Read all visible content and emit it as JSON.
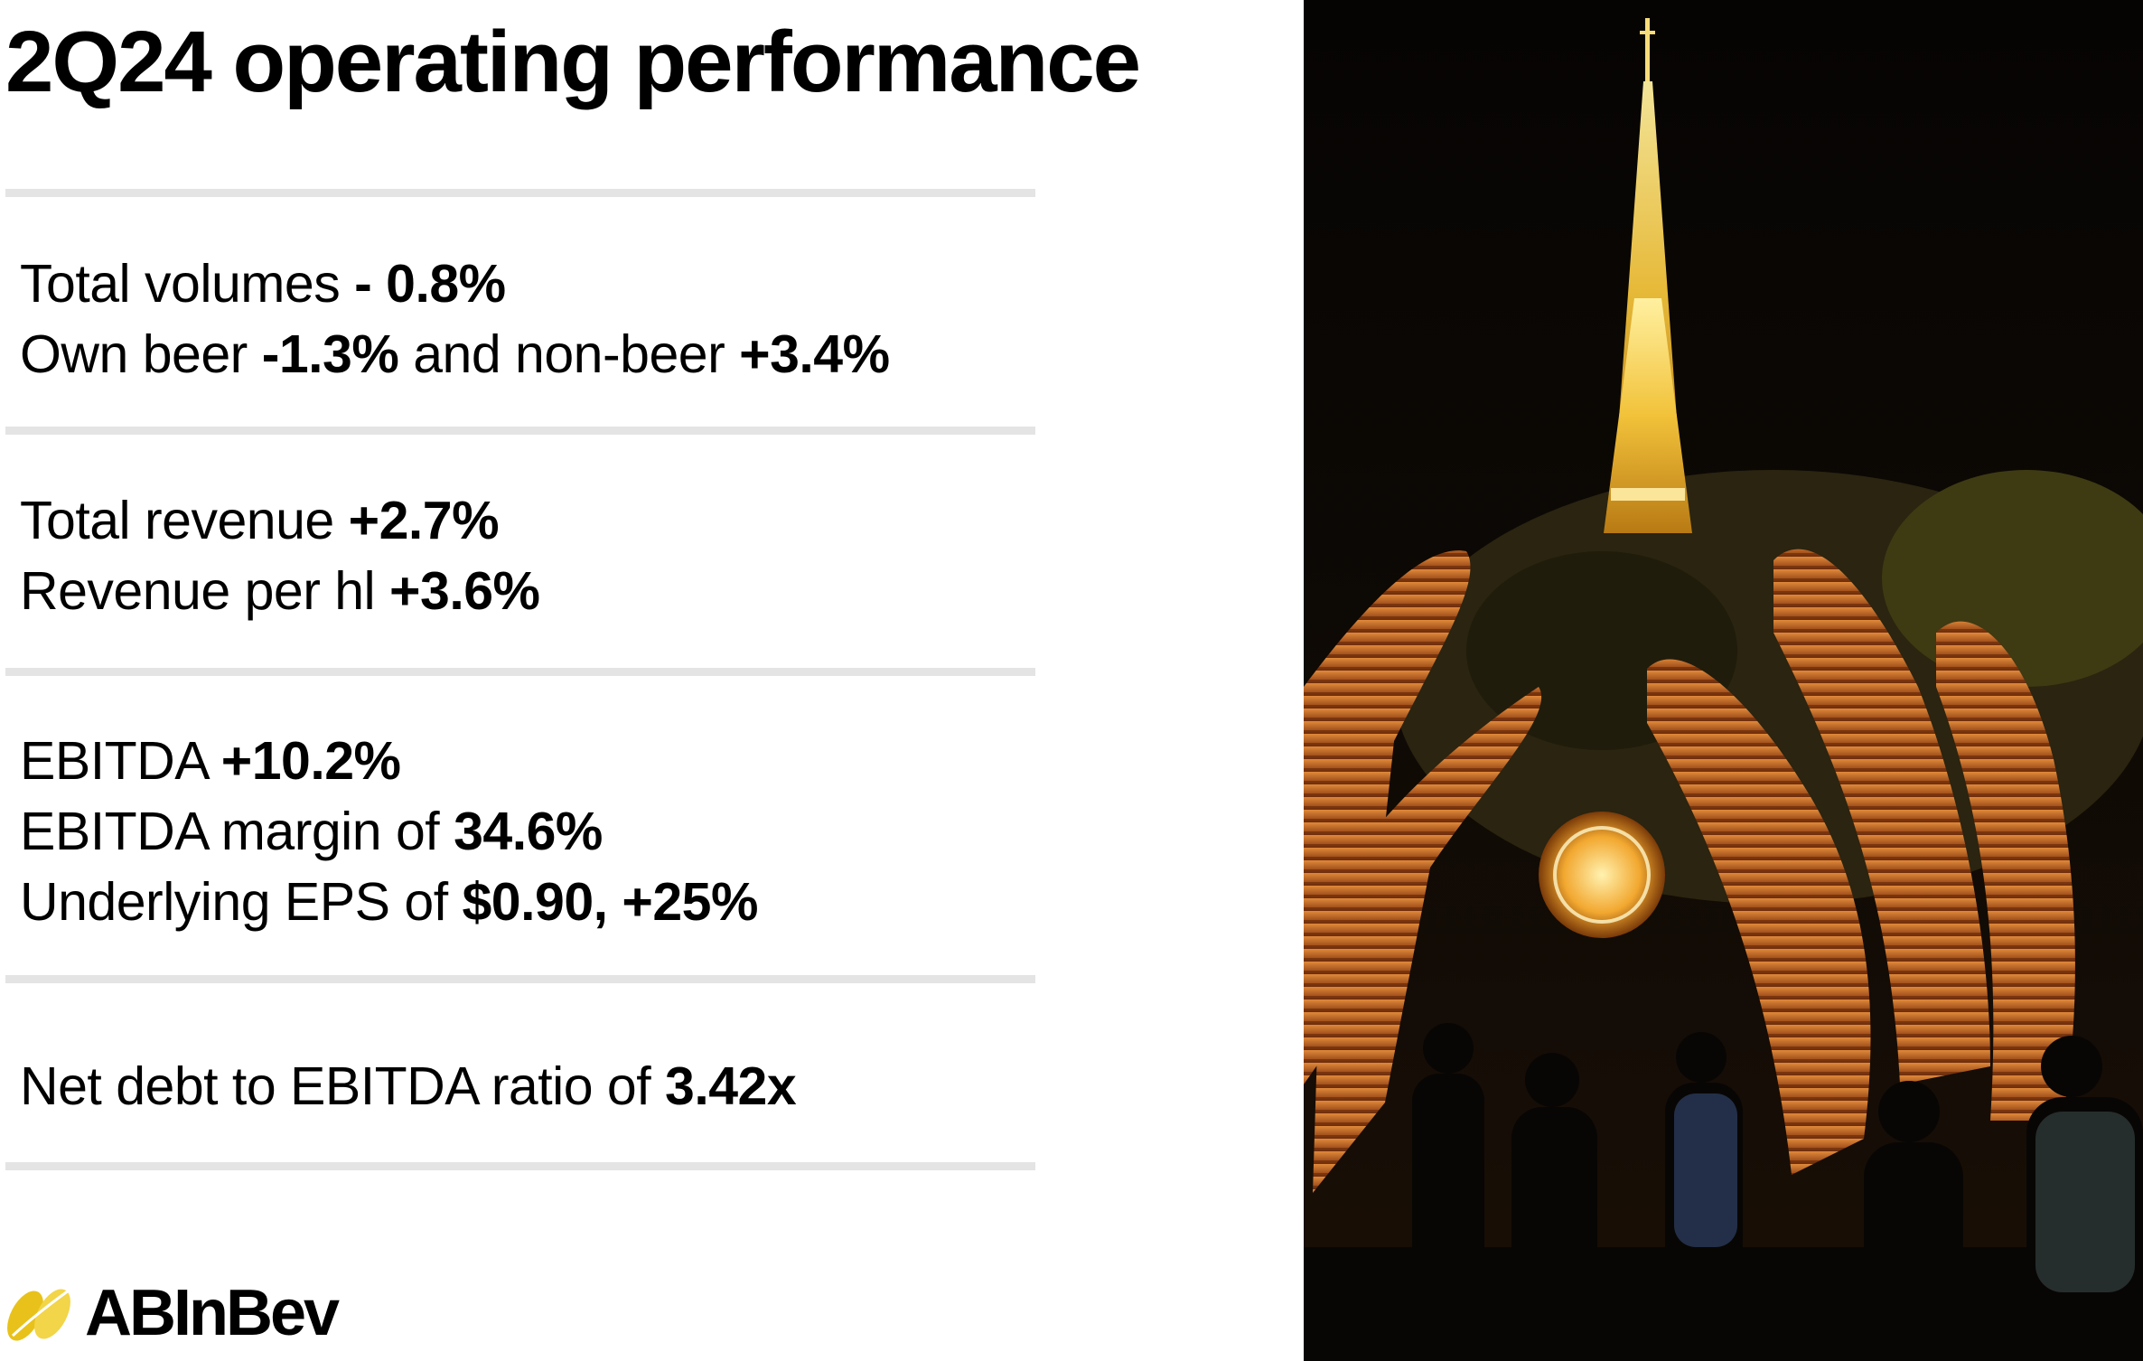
{
  "title": "2Q24 operating performance",
  "metrics": [
    {
      "lines": [
        [
          {
            "text": "Total volumes "
          },
          {
            "text": "- 0.8%",
            "bold": true
          }
        ],
        [
          {
            "text": "Own beer "
          },
          {
            "text": "-1.3%",
            "bold": true
          },
          {
            "text": " and non-beer "
          },
          {
            "text": "+3.4%",
            "bold": true
          }
        ]
      ]
    },
    {
      "lines": [
        [
          {
            "text": "Total revenue "
          },
          {
            "text": "+2.7%",
            "bold": true
          }
        ],
        [
          {
            "text": "Revenue per hl "
          },
          {
            "text": "+3.6%",
            "bold": true
          }
        ]
      ]
    },
    {
      "lines": [
        [
          {
            "text": "EBITDA "
          },
          {
            "text": "+10.2%",
            "bold": true
          }
        ],
        [
          {
            "text": "EBITDA margin of "
          },
          {
            "text": "34.6%",
            "bold": true
          }
        ],
        [
          {
            "text": "Underlying EPS of "
          },
          {
            "text": "$0.90, +25%",
            "bold": true
          }
        ]
      ]
    },
    {
      "lines": [
        [
          {
            "text": "Net debt to EBITDA ratio of "
          },
          {
            "text": "3.42x",
            "bold": true
          }
        ]
      ]
    }
  ],
  "logo": {
    "text": "ABInBev",
    "icon": "abinbev-barley-logo-icon",
    "color": "#e8c21a"
  },
  "photo": {
    "icon": "eiffel-tower-night-photo",
    "accent": "#f2c23a"
  }
}
